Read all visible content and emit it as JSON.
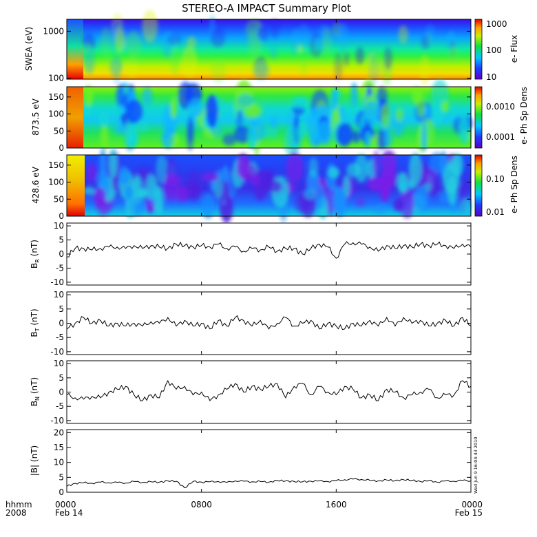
{
  "title": "STEREO-A IMPACT Summary Plot",
  "timestamp_label": "Wed Jun  9 16:04:43 2010",
  "time_axis": {
    "row1_label": "hhmm",
    "row2_label": "2008",
    "ticks": [
      {
        "hour": 0,
        "label": "0000",
        "date": "Feb 14"
      },
      {
        "hour": 8,
        "label": "0800",
        "date": ""
      },
      {
        "hour": 16,
        "label": "1600",
        "date": ""
      },
      {
        "hour": 24,
        "label": "0000",
        "date": "Feb 15"
      }
    ]
  },
  "chart_data": [
    {
      "type": "heatmap",
      "id": "swea",
      "ylabel": "SWEA (eV)",
      "yscale": "log",
      "ylim": [
        95,
        1800
      ],
      "yticks": [
        {
          "value": 100,
          "label": "100"
        },
        {
          "value": 1000,
          "label": "1000"
        }
      ],
      "colorbar": {
        "label": "e- Flux",
        "scale": "log",
        "ticks": [
          "1000",
          "100",
          "10"
        ]
      }
    },
    {
      "type": "heatmap",
      "id": "pad873",
      "ylabel": "873.5 eV",
      "ylim": [
        0,
        180
      ],
      "yticks": [
        {
          "value": 0,
          "label": "0"
        },
        {
          "value": 50,
          "label": "50"
        },
        {
          "value": 100,
          "label": "100"
        },
        {
          "value": 150,
          "label": "150"
        }
      ],
      "colorbar": {
        "label": "e- Ph Sp Dens",
        "scale": "log",
        "ticks": [
          "0.0010",
          "0.0001"
        ]
      }
    },
    {
      "type": "heatmap",
      "id": "pad428",
      "ylabel": "428.6 eV",
      "ylim": [
        0,
        180
      ],
      "yticks": [
        {
          "value": 0,
          "label": "0"
        },
        {
          "value": 50,
          "label": "50"
        },
        {
          "value": 100,
          "label": "100"
        },
        {
          "value": 150,
          "label": "150"
        }
      ],
      "colorbar": {
        "label": "e- Ph Sp Dens",
        "scale": "log",
        "ticks": [
          "0.10",
          "0.01"
        ]
      }
    },
    {
      "type": "line",
      "id": "br",
      "ylabel": "B",
      "ylabel_sub": "R",
      "ylabel_unit": "(nT)",
      "ylim": [
        -11,
        11
      ],
      "yticks": [
        "10",
        "5",
        "0",
        "-5",
        "-10"
      ],
      "x_hours": [
        0.0,
        0.5,
        1,
        1.5,
        2,
        2.5,
        3,
        3.5,
        4,
        4.5,
        5,
        5.5,
        6,
        6.5,
        7,
        7.5,
        8,
        8.5,
        9,
        9.5,
        10,
        10.5,
        11,
        11.5,
        12,
        12.5,
        13,
        13.5,
        14,
        14.5,
        15,
        15.5,
        16,
        16.5,
        17,
        17.5,
        18,
        18.5,
        19,
        19.5,
        20,
        20.5,
        21,
        21.5,
        22,
        22.5,
        23,
        23.5,
        24
      ],
      "values": [
        -1,
        2,
        2,
        1.5,
        2,
        2.5,
        2.5,
        2,
        3,
        2,
        3,
        2.5,
        2,
        3.5,
        3,
        2.5,
        3,
        2.5,
        3.5,
        2,
        2.5,
        1,
        2,
        1.5,
        2.5,
        1,
        2,
        2,
        0,
        2,
        3.5,
        2.5,
        -1.5,
        3.5,
        4,
        3.5,
        2.5,
        1,
        3,
        2,
        3,
        2.5,
        3.5,
        3,
        3.5,
        3,
        2,
        3.5,
        2.5
      ]
    },
    {
      "type": "line",
      "id": "bt",
      "ylabel": "B",
      "ylabel_sub": "T",
      "ylabel_unit": "(nT)",
      "ylim": [
        -11,
        11
      ],
      "yticks": [
        "10",
        "5",
        "0",
        "-5",
        "-10"
      ],
      "x_hours": [
        0.0,
        0.5,
        1,
        1.5,
        2,
        2.5,
        3,
        3.5,
        4,
        4.5,
        5,
        5.5,
        6,
        6.5,
        7,
        7.5,
        8,
        8.5,
        9,
        9.5,
        10,
        10.5,
        11,
        11.5,
        12,
        12.5,
        13,
        13.5,
        14,
        14.5,
        15,
        15.5,
        16,
        16.5,
        17,
        17.5,
        18,
        18.5,
        19,
        19.5,
        20,
        20.5,
        21,
        21.5,
        22,
        22.5,
        23,
        23.5,
        24
      ],
      "values": [
        -2,
        0,
        2,
        0,
        1,
        -1,
        0,
        -1,
        0,
        -1,
        0.5,
        0,
        2,
        -1,
        1,
        -1,
        0,
        -2,
        1,
        -1,
        2,
        1,
        -1,
        1,
        -2,
        0,
        2,
        -1,
        0,
        1,
        -2,
        0,
        -1,
        -2,
        0,
        -1,
        1,
        -1,
        2,
        -1,
        2,
        0,
        1,
        -1,
        0,
        1,
        -1,
        2,
        -1
      ]
    },
    {
      "type": "line",
      "id": "bn",
      "ylabel": "B",
      "ylabel_sub": "N",
      "ylabel_unit": "(nT)",
      "ylim": [
        -11,
        11
      ],
      "yticks": [
        "10",
        "5",
        "0",
        "-5",
        "-10"
      ],
      "x_hours": [
        0.0,
        0.5,
        1,
        1.5,
        2,
        2.5,
        3,
        3.5,
        4,
        4.5,
        5,
        5.5,
        6,
        6.5,
        7,
        7.5,
        8,
        8.5,
        9,
        9.5,
        10,
        10.5,
        11,
        11.5,
        12,
        12.5,
        13,
        13.5,
        14,
        14.5,
        15,
        15.5,
        16,
        16.5,
        17,
        17.5,
        18,
        18.5,
        19,
        19.5,
        20,
        20.5,
        21,
        21.5,
        22,
        22.5,
        23,
        23.5,
        24
      ],
      "values": [
        -1,
        -2,
        -2.5,
        -1.5,
        -2,
        0,
        1,
        2,
        -1,
        -3,
        -1,
        -2,
        4,
        1,
        2,
        -1,
        0,
        -3,
        -1,
        1,
        3,
        0,
        2,
        1,
        2,
        3,
        -2,
        2,
        3,
        -1,
        2,
        0,
        -1,
        2,
        1,
        -2,
        -1,
        -3,
        1,
        0,
        -2,
        -1,
        0,
        1,
        -2,
        -1,
        -1,
        4,
        2
      ]
    },
    {
      "type": "line",
      "id": "bmag",
      "ylabel": "|B|",
      "ylabel_unit": "(nT)",
      "ylim": [
        0,
        21
      ],
      "yticks": [
        "20",
        "15",
        "10",
        "5",
        "0"
      ],
      "x_hours": [
        0.0,
        0.5,
        1,
        1.5,
        2,
        2.5,
        3,
        3.5,
        4,
        4.5,
        5,
        5.5,
        6,
        6.5,
        7,
        7.5,
        8,
        8.5,
        9,
        9.5,
        10,
        10.5,
        11,
        11.5,
        12,
        12.5,
        13,
        13.5,
        14,
        14.5,
        15,
        15.5,
        16,
        16.5,
        17,
        17.5,
        18,
        18.5,
        19,
        19.5,
        20,
        20.5,
        21,
        21.5,
        22,
        22.5,
        23,
        23.5,
        24
      ],
      "values": [
        2,
        3,
        3.2,
        3,
        3.4,
        3.2,
        3.3,
        3.1,
        3.6,
        3.3,
        3.5,
        3.4,
        3.8,
        3.7,
        1.5,
        3.6,
        3.4,
        3.5,
        3.6,
        3.3,
        3.8,
        3.7,
        3.5,
        3.6,
        3.4,
        3.9,
        3.8,
        3.6,
        3.5,
        3.7,
        3.8,
        3.6,
        3.9,
        4.2,
        4.4,
        4.3,
        4.0,
        3.8,
        4.1,
        3.9,
        4.2,
        4.0,
        3.6,
        3.9,
        3.4,
        3.8,
        3.7,
        4.0,
        3.8
      ]
    }
  ]
}
